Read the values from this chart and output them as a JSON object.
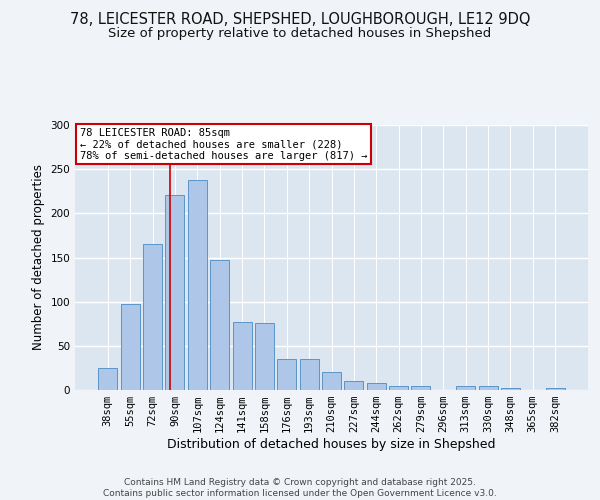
{
  "title1": "78, LEICESTER ROAD, SHEPSHED, LOUGHBOROUGH, LE12 9DQ",
  "title2": "Size of property relative to detached houses in Shepshed",
  "xlabel": "Distribution of detached houses by size in Shepshed",
  "ylabel": "Number of detached properties",
  "bar_labels": [
    "38sqm",
    "55sqm",
    "72sqm",
    "90sqm",
    "107sqm",
    "124sqm",
    "141sqm",
    "158sqm",
    "176sqm",
    "193sqm",
    "210sqm",
    "227sqm",
    "244sqm",
    "262sqm",
    "279sqm",
    "296sqm",
    "313sqm",
    "330sqm",
    "348sqm",
    "365sqm",
    "382sqm"
  ],
  "bar_values": [
    25,
    97,
    165,
    221,
    238,
    147,
    77,
    76,
    35,
    35,
    20,
    10,
    8,
    5,
    4,
    0,
    4,
    4,
    2,
    0,
    2
  ],
  "bar_color": "#aec6e8",
  "bar_edge_color": "#5a96c8",
  "background_color": "#dce6f0",
  "grid_color": "#ffffff",
  "red_line_x": 2.78,
  "annotation_text": "78 LEICESTER ROAD: 85sqm\n← 22% of detached houses are smaller (228)\n78% of semi-detached houses are larger (817) →",
  "annotation_box_color": "#ffffff",
  "annotation_border_color": "#cc0000",
  "ylim": [
    0,
    300
  ],
  "yticks": [
    0,
    50,
    100,
    150,
    200,
    250,
    300
  ],
  "footer_text": "Contains HM Land Registry data © Crown copyright and database right 2025.\nContains public sector information licensed under the Open Government Licence v3.0.",
  "title1_fontsize": 10.5,
  "title2_fontsize": 9.5,
  "xlabel_fontsize": 9,
  "ylabel_fontsize": 8.5,
  "tick_fontsize": 7.5,
  "footer_fontsize": 6.5
}
